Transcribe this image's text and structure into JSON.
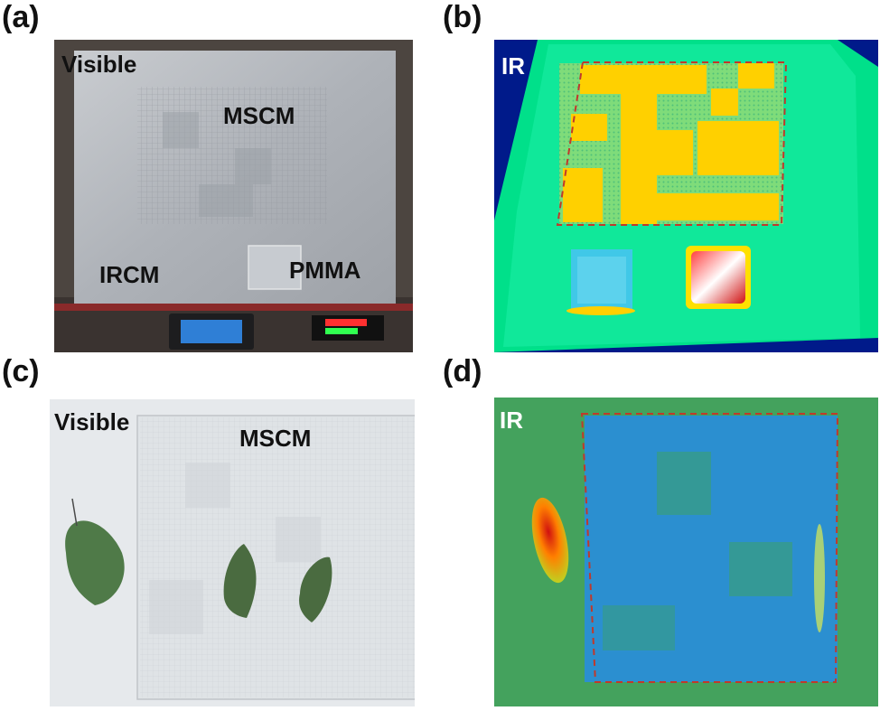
{
  "panels": {
    "a": {
      "letter": "(a)",
      "mode": "Visible",
      "labels": {
        "top": "MSCM",
        "left": "IRCM",
        "right": "PMMA"
      }
    },
    "b": {
      "letter": "(b)",
      "mode": "IR"
    },
    "c": {
      "letter": "(c)",
      "mode": "Visible",
      "labels": {
        "top": "MSCM"
      }
    },
    "d": {
      "letter": "(d)",
      "mode": "IR"
    }
  },
  "colors": {
    "ir_background": "#00e08a",
    "ir_hot": "#ffd000",
    "ir_dark": "#0020a0",
    "dashed_box": "#c0392b"
  }
}
